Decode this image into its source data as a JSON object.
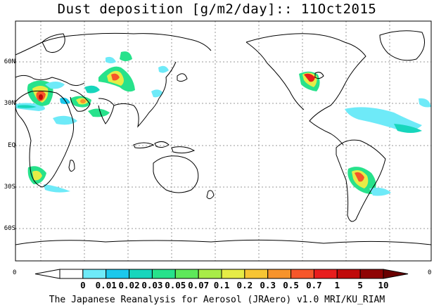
{
  "title": "Dust deposition [g/m2/day]:: 11Oct2015",
  "lat_labels": [
    "60N",
    "30N",
    "EQ",
    "30S",
    "60S"
  ],
  "colorbar": {
    "edge_left": "0",
    "edge_right": "0",
    "ticks": [
      "0",
      "0.01",
      "0.02",
      "0.03",
      "0.05",
      "0.07",
      "0.1",
      "0.2",
      "0.3",
      "0.5",
      "0.7",
      "1",
      "5",
      "10"
    ],
    "colors": [
      "#ffffff",
      "#ffffff",
      "#6eeaf8",
      "#1bc8ec",
      "#17d6bc",
      "#27e28b",
      "#5ee85a",
      "#a8ec48",
      "#e6ec46",
      "#f7c534",
      "#f7932b",
      "#f6562a",
      "#e81d1d",
      "#c00a0a",
      "#8f0303",
      "#6a0000"
    ]
  },
  "footer": "The Japanese Reanalysis for Aerosol (JRAero) v1.0 MRI/KU_RIAM"
}
